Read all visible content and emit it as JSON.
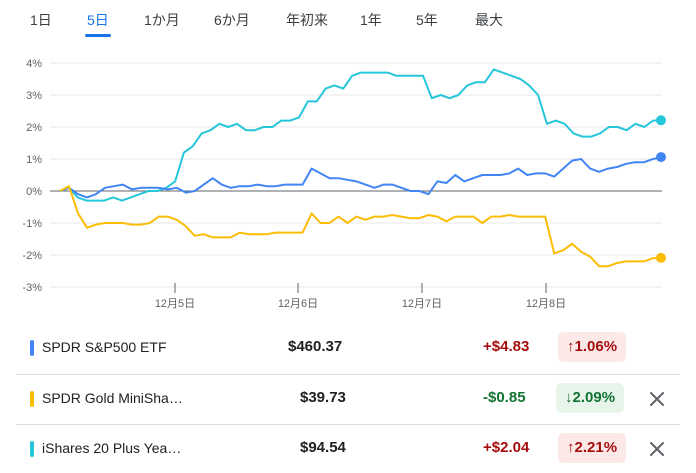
{
  "tabs": [
    {
      "label": "1日",
      "active": false
    },
    {
      "label": "5日",
      "active": true
    },
    {
      "label": "1か月",
      "active": false
    },
    {
      "label": "6か月",
      "active": false
    },
    {
      "label": "年初来",
      "active": false
    },
    {
      "label": "1年",
      "active": false
    },
    {
      "label": "5年",
      "active": false
    },
    {
      "label": "最大",
      "active": false
    }
  ],
  "chart_data": {
    "type": "line",
    "ylim": [
      -3,
      4
    ],
    "yticks": [
      "4%",
      "3%",
      "2%",
      "1%",
      "0%",
      "-1%",
      "-2%",
      "-3%"
    ],
    "xticks": [
      "12月5日",
      "12月6日",
      "12月7日",
      "12月8日"
    ],
    "grid": true,
    "series": [
      {
        "color": "#26c6da",
        "values": [
          0,
          0.1,
          -0.2,
          -0.3,
          -0.3,
          -0.3,
          -0.2,
          -0.3,
          -0.2,
          -0.1,
          0,
          0,
          0.1,
          0.3,
          1.2,
          1.4,
          1.8,
          1.9,
          2.1,
          2.0,
          2.1,
          1.9,
          1.9,
          2.0,
          2.0,
          2.2,
          2.2,
          2.3,
          2.8,
          2.8,
          3.2,
          3.3,
          3.2,
          3.6,
          3.7,
          3.7,
          3.7,
          3.7,
          3.6,
          3.6,
          3.6,
          3.6,
          2.9,
          3.0,
          2.9,
          3.0,
          3.3,
          3.4,
          3.4,
          3.8,
          3.7,
          3.6,
          3.5,
          3.3,
          3.0,
          2.1,
          2.2,
          2.1,
          1.8,
          1.7,
          1.7,
          1.8,
          2.0,
          2.0,
          1.9,
          2.1,
          2.0,
          2.2,
          2.21
        ]
      },
      {
        "color": "#4285f4",
        "values": [
          0,
          0.1,
          -0.1,
          -0.2,
          -0.1,
          0.1,
          0.15,
          0.2,
          0.05,
          0.1,
          0.1,
          0.1,
          0.05,
          0.1,
          -0.05,
          0,
          0.2,
          0.4,
          0.2,
          0.1,
          0.15,
          0.15,
          0.2,
          0.15,
          0.15,
          0.2,
          0.2,
          0.2,
          0.7,
          0.55,
          0.4,
          0.4,
          0.35,
          0.3,
          0.2,
          0.1,
          0.2,
          0.2,
          0.1,
          0,
          0,
          -0.1,
          0.3,
          0.25,
          0.5,
          0.3,
          0.4,
          0.5,
          0.5,
          0.5,
          0.55,
          0.7,
          0.5,
          0.55,
          0.55,
          0.45,
          0.7,
          0.95,
          1.0,
          0.7,
          0.6,
          0.7,
          0.75,
          0.85,
          0.9,
          0.9,
          1.0,
          1.06
        ]
      },
      {
        "color": "#fbbc04",
        "values": [
          0,
          0.15,
          -0.7,
          -1.15,
          -1.05,
          -1.0,
          -1.0,
          -1.0,
          -1.05,
          -1.05,
          -1.0,
          -0.8,
          -0.8,
          -0.9,
          -1.1,
          -1.4,
          -1.35,
          -1.45,
          -1.45,
          -1.45,
          -1.3,
          -1.35,
          -1.35,
          -1.35,
          -1.3,
          -1.3,
          -1.3,
          -1.3,
          -0.7,
          -1.0,
          -1.0,
          -0.8,
          -1.0,
          -0.8,
          -0.9,
          -0.8,
          -0.8,
          -0.75,
          -0.8,
          -0.85,
          -0.85,
          -0.75,
          -0.8,
          -0.95,
          -0.8,
          -0.8,
          -0.8,
          -1.0,
          -0.8,
          -0.8,
          -0.75,
          -0.8,
          -0.8,
          -0.8,
          -0.8,
          -1.95,
          -1.85,
          -1.65,
          -1.9,
          -2.05,
          -2.35,
          -2.35,
          -2.25,
          -2.2,
          -2.2,
          -2.2,
          -2.1,
          -2.09
        ]
      }
    ]
  },
  "rows": [
    {
      "name": "SPDR S&P500 ETF",
      "price": "$460.37",
      "change": "+$4.83",
      "pct": "1.06%",
      "arrow": "↑",
      "direction": "up",
      "color": "#4285f4",
      "removable": false
    },
    {
      "name": "SPDR Gold MiniSha…",
      "price": "$39.73",
      "change": "-$0.85",
      "pct": "2.09%",
      "arrow": "↓",
      "direction": "down",
      "color": "#fbbc04",
      "removable": true
    },
    {
      "name": "iShares 20 Plus Yea…",
      "price": "$94.54",
      "change": "+$2.04",
      "pct": "2.21%",
      "arrow": "↑",
      "direction": "up",
      "color": "#26c6da",
      "removable": true
    }
  ],
  "icons": {
    "close": "close-icon"
  }
}
